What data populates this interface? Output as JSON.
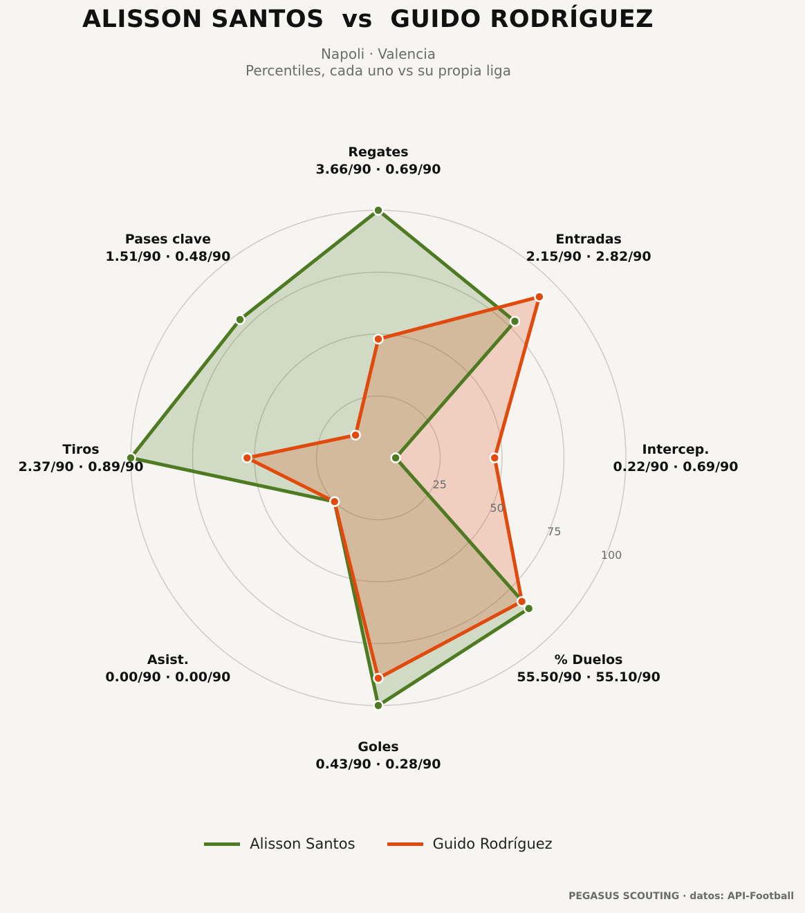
{
  "chart_data": {
    "type": "radar",
    "title": "ALISSON SANTOS  vs  GUIDO RODRÍGUEZ",
    "subtitle_line1": "Napoli · Valencia",
    "subtitle_line2": "Percentiles, cada uno vs su propia liga",
    "axes": [
      {
        "name": "Regates",
        "values_text": "3.66/90 · 0.69/90"
      },
      {
        "name": "Entradas",
        "values_text": "2.15/90 · 2.82/90"
      },
      {
        "name": "Intercep.",
        "values_text": "0.22/90 · 0.69/90"
      },
      {
        "name": "% Duelos",
        "values_text": "55.50/90 · 55.10/90"
      },
      {
        "name": "Goles",
        "values_text": "0.43/90 · 0.28/90"
      },
      {
        "name": "Asist.",
        "values_text": "0.00/90 · 0.00/90"
      },
      {
        "name": "Tiros",
        "values_text": "2.37/90 · 0.89/90"
      },
      {
        "name": "Pases clave",
        "values_text": "1.51/90 · 0.48/90"
      }
    ],
    "radial_ticks": [
      "25",
      "50",
      "75",
      "100"
    ],
    "rlim": [
      0,
      100
    ],
    "series": [
      {
        "name": "Alisson Santos",
        "color": "#4e7a22",
        "values": [
          100,
          78,
          7,
          86,
          100,
          25,
          100,
          79
        ]
      },
      {
        "name": "Guido Rodríguez",
        "color": "#e04a0c",
        "values": [
          48,
          92,
          47,
          82,
          89,
          25,
          53,
          13
        ]
      }
    ],
    "legend_position": "bottom-center",
    "grid": true
  },
  "footer": {
    "credit": "PEGASUS SCOUTING · datos: API-Football"
  }
}
